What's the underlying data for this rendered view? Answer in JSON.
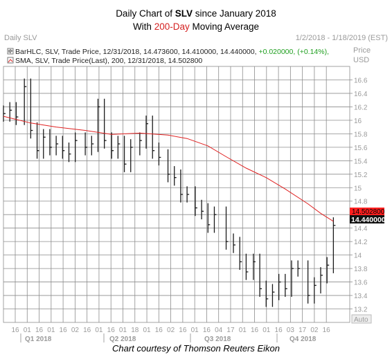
{
  "title": {
    "line1_prefix": "Daily Chart of ",
    "ticker": "SLV",
    "line1_suffix": " since January 2018",
    "line2_prefix": "With ",
    "line2_highlight": "200-Day",
    "line2_suffix": " Moving Average"
  },
  "header": {
    "left": "Daily SLV",
    "right": "1/2/2018 - 1/18/2019 (EST)"
  },
  "legend": {
    "bar_label": "BarHLC, SLV, Trade Price, 12/31/2018, 14.473600, 14.410000, 14.440000, ",
    "bar_change": "+0.020000, (+0.14%),",
    "sma_label": "SMA, SLV, Trade Price(Last), 200, 12/31/2018, 14.502800"
  },
  "axis": {
    "price_title_1": "Price",
    "price_title_2": "USD",
    "auto_label": "Auto",
    "y_ticks": [
      "16.6",
      "16.4",
      "16.2",
      "16",
      "15.8",
      "15.6",
      "15.4",
      "15.2",
      "15",
      "14.8",
      "14.6",
      "14.4",
      "14.2",
      "14",
      "13.8",
      "13.6",
      "13.4",
      "13.2"
    ],
    "x_day_ticks": [
      "16",
      "01",
      "16",
      "01",
      "16",
      "02",
      "16",
      "01",
      "16",
      "01",
      "18",
      "01",
      "16",
      "02",
      "16",
      "01",
      "16",
      "04",
      "17",
      "01",
      "16",
      "01",
      "16",
      "03",
      "17",
      "02",
      "16"
    ],
    "quarters": [
      "Q1 2018",
      "Q2 2018",
      "Q3 2018",
      "Q4 2018"
    ],
    "last_sma_label": "14.502800",
    "last_price_label": "14.440000"
  },
  "colors": {
    "bars": "#1a1a1a",
    "sma": "#e02020",
    "grid": "#8c8c8c",
    "axis_text": "#9a9a9a",
    "title_highlight": "#d42020"
  },
  "footer": "Chart courtesy of Thomson Reuters Eikon",
  "chart_data": {
    "type": "bar",
    "title": "Daily Chart of SLV since January 2018",
    "subtitle": "With 200-Day Moving Average",
    "ylabel": "Price USD",
    "ylim": [
      13.0,
      16.8
    ],
    "x_start": "2018-01-02",
    "x_end": "2019-01-18",
    "grid": true,
    "series": [
      {
        "name": "BarHLC, SLV, Trade Price",
        "style": "ohlc-bar",
        "x": [
          "2018-01-02",
          "2018-01-09",
          "2018-01-16",
          "2018-01-25",
          "2018-02-01",
          "2018-02-08",
          "2018-02-15",
          "2018-02-22",
          "2018-03-01",
          "2018-03-08",
          "2018-03-15",
          "2018-03-22",
          "2018-04-02",
          "2018-04-09",
          "2018-04-16",
          "2018-04-23",
          "2018-05-01",
          "2018-05-08",
          "2018-05-15",
          "2018-05-22",
          "2018-06-01",
          "2018-06-08",
          "2018-06-15",
          "2018-06-22",
          "2018-07-02",
          "2018-07-09",
          "2018-07-16",
          "2018-07-23",
          "2018-08-01",
          "2018-08-08",
          "2018-08-15",
          "2018-08-22",
          "2018-09-04",
          "2018-09-12",
          "2018-09-19",
          "2018-09-26",
          "2018-10-04",
          "2018-10-11",
          "2018-10-18",
          "2018-10-25",
          "2018-11-01",
          "2018-11-08",
          "2018-11-15",
          "2018-11-22",
          "2018-12-03",
          "2018-12-10",
          "2018-12-17",
          "2018-12-24",
          "2018-12-31"
        ],
        "values": [
          16.1,
          16.15,
          16.05,
          16.5,
          15.85,
          15.55,
          15.75,
          15.6,
          15.65,
          15.55,
          15.5,
          15.7,
          15.6,
          15.65,
          16.2,
          15.7,
          15.55,
          15.65,
          15.35,
          15.6,
          15.7,
          15.95,
          15.55,
          15.45,
          15.2,
          15.15,
          14.9,
          14.9,
          14.7,
          14.65,
          14.45,
          14.6,
          14.2,
          14.15,
          13.9,
          13.75,
          13.9,
          13.5,
          13.35,
          13.45,
          13.6,
          13.5,
          13.8,
          13.8,
          13.4,
          13.55,
          13.7,
          13.85,
          14.44
        ]
      },
      {
        "name": "SMA, SLV, Trade Price(Last), 200",
        "style": "line",
        "x": [
          "2018-01-02",
          "2018-02-01",
          "2018-03-01",
          "2018-04-02",
          "2018-05-01",
          "2018-06-01",
          "2018-07-02",
          "2018-07-23",
          "2018-08-15",
          "2018-09-04",
          "2018-09-26",
          "2018-10-18",
          "2018-11-08",
          "2018-12-03",
          "2018-12-17",
          "2018-12-31"
        ],
        "values": [
          16.06,
          15.96,
          15.9,
          15.85,
          15.79,
          15.81,
          15.78,
          15.73,
          15.62,
          15.46,
          15.29,
          15.15,
          14.98,
          14.76,
          14.62,
          14.5
        ]
      }
    ]
  }
}
